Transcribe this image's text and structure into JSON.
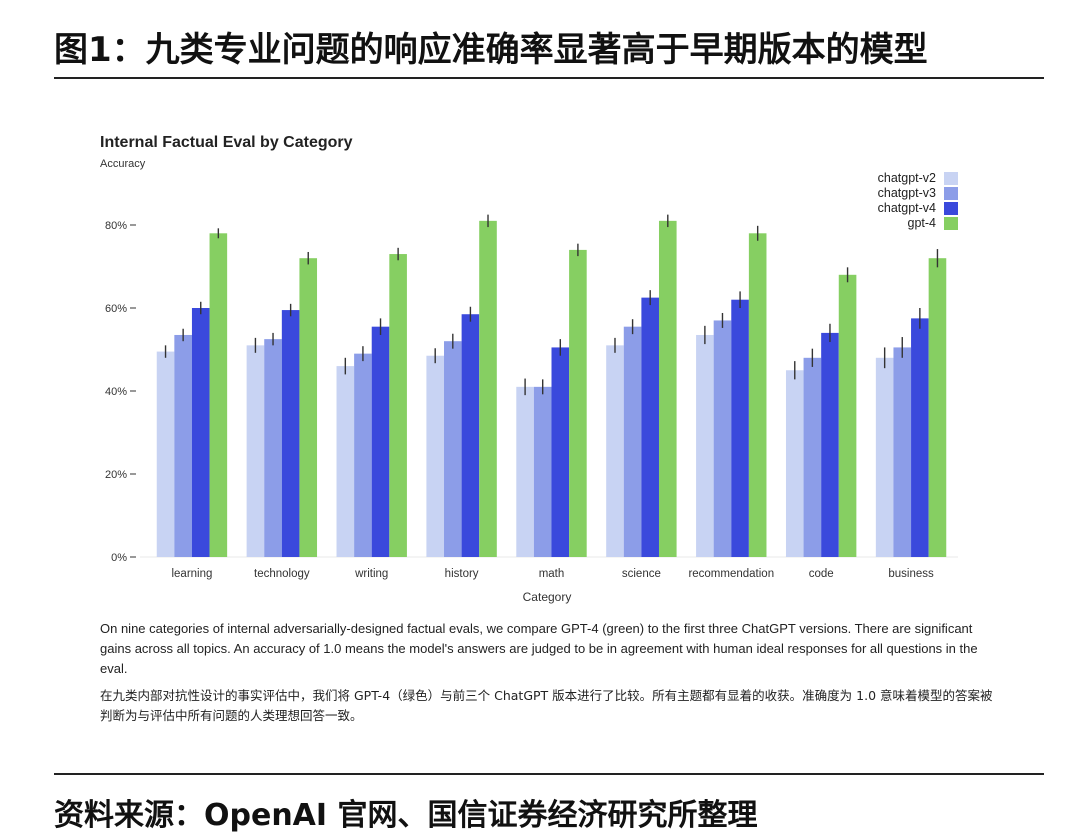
{
  "figure_title": "图1：九类专业问题的响应准确率显著高于早期版本的模型",
  "source": "资料来源：OpenAI 官网、国信证券经济研究所整理",
  "caption_en": "On nine categories of internal adversarially-designed factual evals, we compare GPT-4 (green) to the first three ChatGPT versions. There are significant gains across all topics. An accuracy of 1.0 means the model's answers are judged to be in agreement with human ideal responses for all questions in the eval.",
  "caption_zh": "在九类内部对抗性设计的事实评估中，我们将 GPT-4（绿色）与前三个 ChatGPT 版本进行了比较。所有主题都有显着的收获。准确度为 1.0 意味着模型的答案被判断为与评估中所有问题的人类理想回答一致。",
  "chart_data": {
    "type": "bar",
    "title": "Internal Factual Eval by Category",
    "ylabel": "Accuracy",
    "xlabel": "Category",
    "ylim": [
      0,
      100
    ],
    "yticks": [
      0,
      20,
      40,
      60,
      80
    ],
    "ytick_labels": [
      "0%",
      "20%",
      "40%",
      "60%",
      "80%"
    ],
    "legend_position": "top-right",
    "grid": false,
    "categories": [
      "learning",
      "technology",
      "writing",
      "history",
      "math",
      "science",
      "recommendation",
      "code",
      "business"
    ],
    "series": [
      {
        "name": "chatgpt-v2",
        "color": "#c8d3f3",
        "values": [
          49.5,
          51,
          46,
          48.5,
          41,
          51,
          53.5,
          45,
          48
        ],
        "errors": [
          1.5,
          1.8,
          2,
          1.8,
          2,
          1.8,
          2.2,
          2.2,
          2.5
        ]
      },
      {
        "name": "chatgpt-v3",
        "color": "#8c9de8",
        "values": [
          53.5,
          52.5,
          49,
          52,
          41,
          55.5,
          57,
          48,
          50.5
        ],
        "errors": [
          1.5,
          1.5,
          1.8,
          1.8,
          1.8,
          1.8,
          1.8,
          2.2,
          2.5
        ]
      },
      {
        "name": "chatgpt-v4",
        "color": "#3a49dc",
        "values": [
          60,
          59.5,
          55.5,
          58.5,
          50.5,
          62.5,
          62,
          54,
          57.5
        ],
        "errors": [
          1.5,
          1.5,
          2,
          1.8,
          2,
          1.8,
          2,
          2.2,
          2.5
        ]
      },
      {
        "name": "gpt-4",
        "color": "#86cf62",
        "values": [
          78,
          72,
          73,
          81,
          74,
          81,
          78,
          68,
          72
        ],
        "errors": [
          1.2,
          1.5,
          1.5,
          1.5,
          1.5,
          1.5,
          1.8,
          1.8,
          2.2
        ]
      }
    ]
  }
}
